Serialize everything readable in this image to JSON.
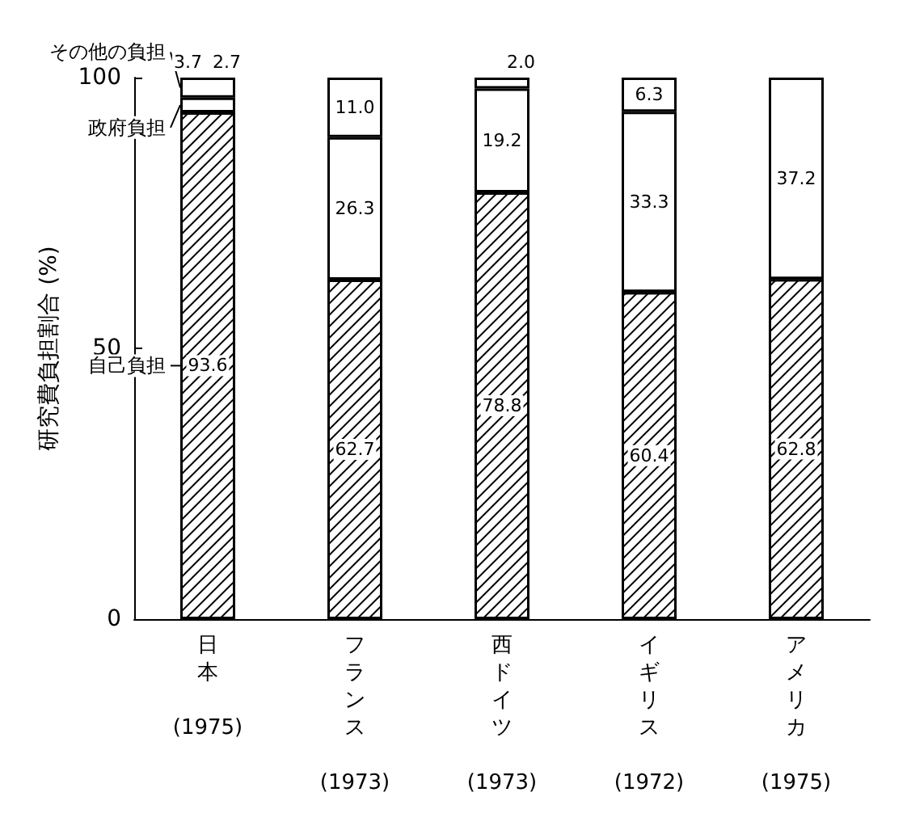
{
  "chart_data": {
    "type": "bar",
    "stacked": true,
    "ylabel": "研究費負担割合 (%)",
    "categories": [
      "日本 (1975)",
      "フランス (1973)",
      "西ドイツ (1973)",
      "イギリス (1972)",
      "アメリカ (1975)"
    ],
    "series": [
      {
        "name": "自己負担",
        "color": "#ffffff",
        "values": [
          93.6,
          62.7,
          78.8,
          60.4,
          62.8
        ],
        "value_labels": [
          "93.6",
          "62.7",
          "78.8",
          "60.4",
          "62.8"
        ]
      },
      {
        "name": "政府負担",
        "color": "#ffffff",
        "values": [
          2.7,
          26.3,
          19.2,
          33.3,
          37.2
        ],
        "value_labels": [
          "2.7",
          "26.3",
          "19.2",
          "33.3",
          "37.2"
        ]
      },
      {
        "name": "その他の負担",
        "color": "#ffffff",
        "values": [
          3.7,
          11.0,
          2.0,
          6.3,
          null
        ],
        "value_labels": [
          "3.7",
          "11.0",
          "2.0",
          "6.3",
          null
        ]
      }
    ],
    "ylim": [
      0,
      100
    ],
    "yticks": [
      0,
      50,
      100
    ],
    "grid": false,
    "legend": "left"
  }
}
